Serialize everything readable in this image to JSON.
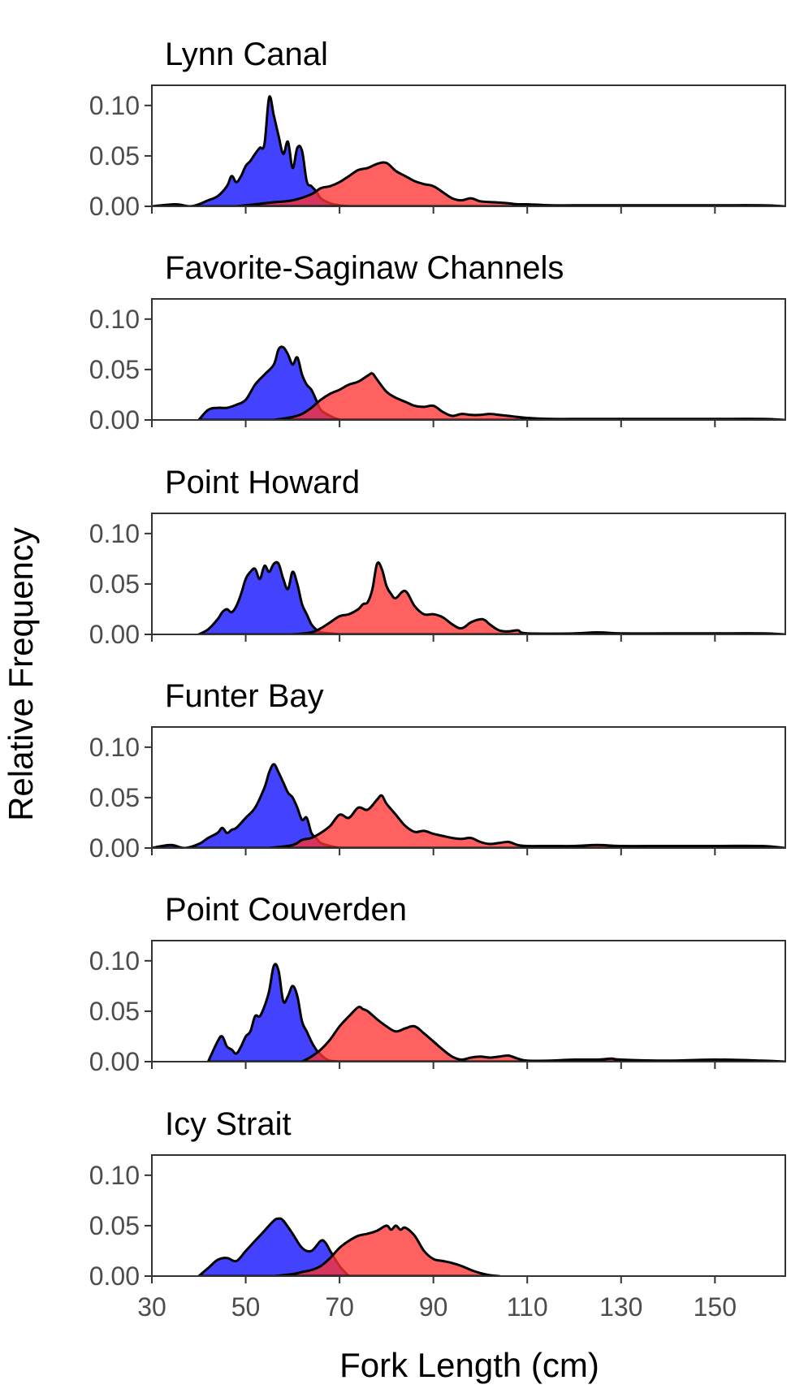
{
  "chart_data": {
    "type": "area",
    "xlabel": "Fork Length (cm)",
    "ylabel": "Relative Frequency",
    "xlim": [
      30,
      165
    ],
    "ylim": [
      0,
      0.12
    ],
    "xticks": [
      30,
      50,
      70,
      90,
      110,
      130,
      150
    ],
    "yticks": [
      0.0,
      0.05,
      0.1
    ],
    "ytick_labels": [
      "0.00",
      "0.05",
      "0.10"
    ],
    "grid": false,
    "series_colors": [
      "#3333FF",
      "#FF3333"
    ],
    "panels": [
      {
        "title": "Lynn Canal",
        "series": [
          {
            "x": [
              30,
              35,
              38,
              40,
              42,
              44,
              46,
              47,
              48,
              49,
              50,
              51,
              52,
              53,
              54,
              55,
              56,
              57,
              58,
              59,
              60,
              61,
              62,
              63,
              64,
              65,
              66,
              68,
              70,
              72
            ],
            "y": [
              0,
              0.002,
              0,
              0.002,
              0.006,
              0.01,
              0.02,
              0.03,
              0.024,
              0.03,
              0.04,
              0.045,
              0.052,
              0.058,
              0.062,
              0.108,
              0.09,
              0.07,
              0.052,
              0.064,
              0.038,
              0.058,
              0.055,
              0.025,
              0.02,
              0.015,
              0.008,
              0.003,
              0.001,
              0
            ]
          },
          {
            "x": [
              48,
              52,
              56,
              60,
              64,
              66,
              68,
              70,
              72,
              74,
              76,
              78,
              80,
              82,
              84,
              86,
              88,
              90,
              92,
              94,
              96,
              98,
              100,
              103,
              106,
              108,
              110,
              115,
              120,
              130,
              140,
              150,
              160,
              165
            ],
            "y": [
              0,
              0.002,
              0.004,
              0.006,
              0.012,
              0.018,
              0.02,
              0.024,
              0.03,
              0.036,
              0.038,
              0.042,
              0.043,
              0.035,
              0.03,
              0.025,
              0.022,
              0.02,
              0.014,
              0.008,
              0.006,
              0.008,
              0.005,
              0.004,
              0.003,
              0.002,
              0.002,
              0.001,
              0.001,
              0.001,
              0.001,
              0.001,
              0.001,
              0
            ]
          }
        ]
      },
      {
        "title": "Favorite-Saginaw Channels",
        "series": [
          {
            "x": [
              40,
              42,
              44,
              46,
              48,
              50,
              52,
              54,
              56,
              57,
              58,
              59,
              60,
              61,
              62,
              63,
              64,
              65,
              66,
              68,
              70
            ],
            "y": [
              0,
              0.01,
              0.012,
              0.012,
              0.015,
              0.02,
              0.035,
              0.045,
              0.055,
              0.07,
              0.072,
              0.065,
              0.055,
              0.062,
              0.045,
              0.035,
              0.03,
              0.02,
              0.01,
              0.004,
              0
            ]
          },
          {
            "x": [
              56,
              60,
              62,
              64,
              66,
              68,
              70,
              72,
              74,
              76,
              77,
              78,
              80,
              82,
              84,
              86,
              88,
              90,
              92,
              94,
              96,
              98,
              100,
              102,
              104,
              106,
              110,
              115,
              120,
              130,
              140,
              150,
              160,
              165
            ],
            "y": [
              0,
              0.003,
              0.006,
              0.012,
              0.02,
              0.026,
              0.03,
              0.035,
              0.038,
              0.044,
              0.046,
              0.04,
              0.028,
              0.022,
              0.018,
              0.014,
              0.013,
              0.014,
              0.008,
              0.004,
              0.006,
              0.005,
              0.005,
              0.006,
              0.005,
              0.004,
              0.002,
              0.001,
              0.001,
              0.001,
              0.001,
              0.001,
              0.001,
              0
            ]
          }
        ]
      },
      {
        "title": "Point Howard",
        "series": [
          {
            "x": [
              40,
              42,
              44,
              45,
              46,
              47,
              48,
              49,
              50,
              51,
              52,
              53,
              54,
              55,
              56,
              57,
              58,
              59,
              60,
              61,
              62,
              63,
              64,
              65,
              66,
              68,
              70
            ],
            "y": [
              0,
              0.005,
              0.015,
              0.022,
              0.025,
              0.022,
              0.028,
              0.04,
              0.055,
              0.062,
              0.065,
              0.055,
              0.068,
              0.062,
              0.07,
              0.07,
              0.055,
              0.045,
              0.062,
              0.05,
              0.03,
              0.02,
              0.01,
              0.005,
              0.002,
              0.001,
              0
            ]
          },
          {
            "x": [
              60,
              64,
              66,
              68,
              70,
              72,
              74,
              75,
              76,
              77,
              78,
              79,
              80,
              81,
              82,
              84,
              86,
              88,
              90,
              92,
              94,
              96,
              98,
              100,
              101,
              102,
              104,
              106,
              108,
              110,
              120,
              125,
              130,
              140,
              150,
              160,
              165
            ],
            "y": [
              0,
              0.002,
              0.006,
              0.012,
              0.018,
              0.02,
              0.025,
              0.03,
              0.032,
              0.045,
              0.07,
              0.065,
              0.048,
              0.04,
              0.036,
              0.043,
              0.028,
              0.02,
              0.02,
              0.017,
              0.01,
              0.006,
              0.012,
              0.015,
              0.014,
              0.01,
              0.004,
              0.003,
              0.004,
              0.001,
              0.001,
              0.002,
              0.001,
              0.001,
              0.001,
              0.001,
              0
            ]
          }
        ]
      },
      {
        "title": "Funter Bay",
        "series": [
          {
            "x": [
              30,
              34,
              37,
              40,
              42,
              44,
              45,
              46,
              47,
              48,
              50,
              52,
              54,
              55,
              56,
              57,
              58,
              59,
              60,
              61,
              62,
              63,
              64,
              65,
              66,
              68,
              70
            ],
            "y": [
              0,
              0.003,
              0,
              0.004,
              0.01,
              0.015,
              0.02,
              0.015,
              0.018,
              0.02,
              0.03,
              0.04,
              0.06,
              0.075,
              0.083,
              0.075,
              0.065,
              0.055,
              0.05,
              0.04,
              0.028,
              0.03,
              0.015,
              0.01,
              0.005,
              0.002,
              0
            ]
          },
          {
            "x": [
              55,
              60,
              62,
              64,
              66,
              68,
              70,
              72,
              74,
              76,
              78,
              79,
              80,
              82,
              84,
              86,
              88,
              90,
              92,
              94,
              96,
              98,
              100,
              102,
              104,
              106,
              108,
              110,
              115,
              120,
              125,
              130,
              140,
              150,
              160,
              165
            ],
            "y": [
              0,
              0.003,
              0.008,
              0.01,
              0.015,
              0.022,
              0.033,
              0.03,
              0.04,
              0.038,
              0.048,
              0.052,
              0.044,
              0.033,
              0.022,
              0.016,
              0.017,
              0.014,
              0.012,
              0.01,
              0.009,
              0.01,
              0.006,
              0.004,
              0.005,
              0.006,
              0.003,
              0.002,
              0.002,
              0.002,
              0.003,
              0.002,
              0.002,
              0.002,
              0.002,
              0
            ]
          }
        ]
      },
      {
        "title": "Point Couverden",
        "series": [
          {
            "x": [
              42,
              44,
              45,
              46,
              47,
              48,
              49,
              50,
              51,
              52,
              53,
              54,
              55,
              56,
              57,
              58,
              59,
              60,
              61,
              62,
              63,
              64,
              65,
              66,
              67,
              68,
              70
            ],
            "y": [
              0,
              0.02,
              0.025,
              0.015,
              0.012,
              0.008,
              0.015,
              0.025,
              0.03,
              0.045,
              0.045,
              0.055,
              0.07,
              0.095,
              0.09,
              0.06,
              0.065,
              0.075,
              0.065,
              0.04,
              0.03,
              0.02,
              0.012,
              0.007,
              0.003,
              0.001,
              0
            ]
          },
          {
            "x": [
              62,
              64,
              66,
              68,
              70,
              72,
              74,
              75,
              76,
              78,
              80,
              82,
              84,
              86,
              88,
              90,
              92,
              94,
              96,
              98,
              100,
              102,
              104,
              106,
              108,
              110,
              115,
              120,
              125,
              128,
              130,
              140,
              150,
              160,
              165
            ],
            "y": [
              0,
              0.005,
              0.012,
              0.022,
              0.035,
              0.045,
              0.054,
              0.052,
              0.05,
              0.042,
              0.035,
              0.03,
              0.033,
              0.035,
              0.028,
              0.02,
              0.012,
              0.005,
              0.002,
              0.004,
              0.005,
              0.004,
              0.005,
              0.006,
              0.003,
              0.001,
              0.001,
              0.002,
              0.002,
              0.003,
              0.002,
              0.001,
              0.002,
              0.001,
              0
            ]
          }
        ]
      },
      {
        "title": "Icy Strait",
        "series": [
          {
            "x": [
              40,
              42,
              44,
              46,
              48,
              50,
              52,
              54,
              56,
              57,
              58,
              60,
              62,
              64,
              66,
              67,
              68,
              70,
              72
            ],
            "y": [
              0,
              0.008,
              0.016,
              0.018,
              0.015,
              0.025,
              0.035,
              0.045,
              0.055,
              0.057,
              0.055,
              0.042,
              0.028,
              0.025,
              0.035,
              0.033,
              0.025,
              0.01,
              0
            ]
          },
          {
            "x": [
              56,
              60,
              62,
              64,
              66,
              68,
              70,
              72,
              74,
              76,
              78,
              80,
              81,
              82,
              83,
              84,
              86,
              88,
              90,
              92,
              94,
              96,
              98,
              100,
              102,
              104
            ],
            "y": [
              0,
              0.002,
              0.004,
              0.006,
              0.01,
              0.018,
              0.028,
              0.035,
              0.04,
              0.042,
              0.045,
              0.05,
              0.046,
              0.05,
              0.046,
              0.048,
              0.04,
              0.025,
              0.017,
              0.015,
              0.013,
              0.01,
              0.006,
              0.003,
              0.001,
              0
            ]
          }
        ]
      }
    ]
  }
}
